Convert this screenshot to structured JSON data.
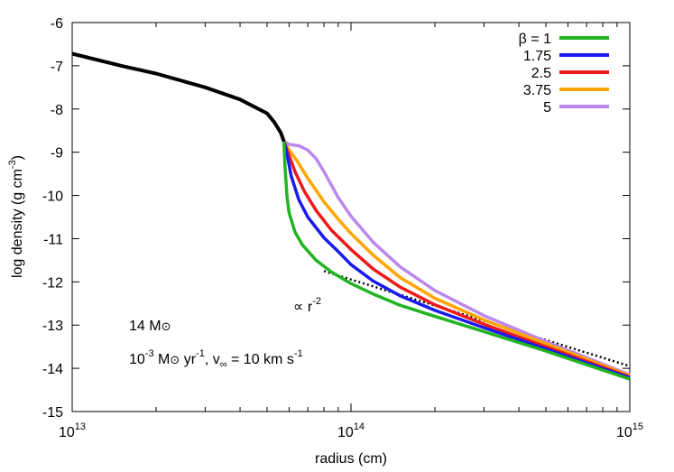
{
  "chart_data": {
    "type": "line",
    "xlabel": "radius (cm)",
    "ylabel": "log density (g cm^-3)",
    "xscale": "log",
    "xlim": [
      10000000000000.0,
      1000000000000000.0
    ],
    "ylim": [
      -15,
      -6
    ],
    "grid": false,
    "legend_position": "top-right",
    "x_ticks": [
      {
        "value": 10000000000000.0,
        "base": "10",
        "exp": "13"
      },
      {
        "value": 100000000000000.0,
        "base": "10",
        "exp": "14"
      },
      {
        "value": 1000000000000000.0,
        "base": "10",
        "exp": "15"
      }
    ],
    "y_ticks": [
      -6,
      -7,
      -8,
      -9,
      -10,
      -11,
      -12,
      -13,
      -14,
      -15
    ],
    "progenitor": {
      "color": "#000000",
      "x": [
        10000000000000.0,
        15000000000000.0,
        20000000000000.0,
        30000000000000.0,
        40000000000000.0,
        50000000000000.0,
        53000000000000.0,
        56000000000000.0,
        57500000000000.0
      ],
      "y": [
        -6.72,
        -7.0,
        -7.18,
        -7.5,
        -7.78,
        -8.1,
        -8.3,
        -8.55,
        -8.75
      ]
    },
    "series": [
      {
        "name": "β = 1",
        "color": "#22b422",
        "x": [
          57500000000000.0,
          58000000000000.0,
          59000000000000.0,
          60000000000000.0,
          63000000000000.0,
          67000000000000.0,
          75000000000000.0,
          85000000000000.0,
          100000000000000.0,
          120000000000000.0,
          150000000000000.0,
          200000000000000.0,
          300000000000000.0,
          500000000000000.0,
          1000000000000000.0
        ],
        "y": [
          -8.75,
          -9.35,
          -10.05,
          -10.4,
          -10.85,
          -11.15,
          -11.5,
          -11.77,
          -12.04,
          -12.28,
          -12.54,
          -12.8,
          -13.15,
          -13.6,
          -14.25
        ]
      },
      {
        "name": "1.75",
        "color": "#1a1aee",
        "x": [
          57500000000000.0,
          59000000000000.0,
          61000000000000.0,
          65000000000000.0,
          70000000000000.0,
          80000000000000.0,
          90000000000000.0,
          100000000000000.0,
          120000000000000.0,
          150000000000000.0,
          200000000000000.0,
          300000000000000.0,
          500000000000000.0,
          1000000000000000.0
        ],
        "y": [
          -8.75,
          -9.05,
          -9.55,
          -10.1,
          -10.5,
          -10.98,
          -11.3,
          -11.6,
          -11.98,
          -12.32,
          -12.66,
          -13.06,
          -13.55,
          -14.22
        ]
      },
      {
        "name": "2.5",
        "color": "#ee1a1a",
        "x": [
          57500000000000.0,
          60000000000000.0,
          63000000000000.0,
          68000000000000.0,
          75000000000000.0,
          85000000000000.0,
          100000000000000.0,
          120000000000000.0,
          150000000000000.0,
          200000000000000.0,
          300000000000000.0,
          500000000000000.0,
          1000000000000000.0
        ],
        "y": [
          -8.75,
          -9.08,
          -9.45,
          -9.9,
          -10.35,
          -10.8,
          -11.25,
          -11.7,
          -12.12,
          -12.53,
          -12.98,
          -13.5,
          -14.2
        ]
      },
      {
        "name": "3.75",
        "color": "#ffa500",
        "x": [
          57500000000000.0,
          60000000000000.0,
          64000000000000.0,
          70000000000000.0,
          80000000000000.0,
          90000000000000.0,
          100000000000000.0,
          120000000000000.0,
          150000000000000.0,
          200000000000000.0,
          300000000000000.0,
          500000000000000.0,
          1000000000000000.0
        ],
        "y": [
          -8.75,
          -8.95,
          -9.2,
          -9.6,
          -10.15,
          -10.55,
          -10.88,
          -11.38,
          -11.9,
          -12.38,
          -12.88,
          -13.43,
          -14.17
        ]
      },
      {
        "name": "5",
        "color": "#bb88ee",
        "x": [
          57500000000000.0,
          60000000000000.0,
          65000000000000.0,
          70000000000000.0,
          75000000000000.0,
          80000000000000.0,
          90000000000000.0,
          100000000000000.0,
          120000000000000.0,
          150000000000000.0,
          200000000000000.0,
          300000000000000.0,
          500000000000000.0,
          1000000000000000.0
        ],
        "y": [
          -8.75,
          -8.82,
          -8.85,
          -8.95,
          -9.15,
          -9.45,
          -10.05,
          -10.48,
          -11.08,
          -11.65,
          -12.2,
          -12.78,
          -13.38,
          -14.15
        ]
      }
    ],
    "reference_line": {
      "label": "∝ r",
      "label_exp": "-2",
      "style": "dotted",
      "color": "#000000",
      "x": [
        80000000000000.0,
        1000000000000000.0
      ],
      "y": [
        -11.75,
        -13.95
      ]
    },
    "annotations": {
      "mass": {
        "number": "14 M",
        "sun": "⊙"
      },
      "wind": {
        "a": "10",
        "a_exp": "-3",
        "b": " M",
        "sun": "⊙",
        "c": " yr",
        "c_exp": "-1",
        "d": ", v",
        "d_sub": "∞",
        "e": " = 10 km s",
        "e_exp": "-1"
      }
    }
  }
}
